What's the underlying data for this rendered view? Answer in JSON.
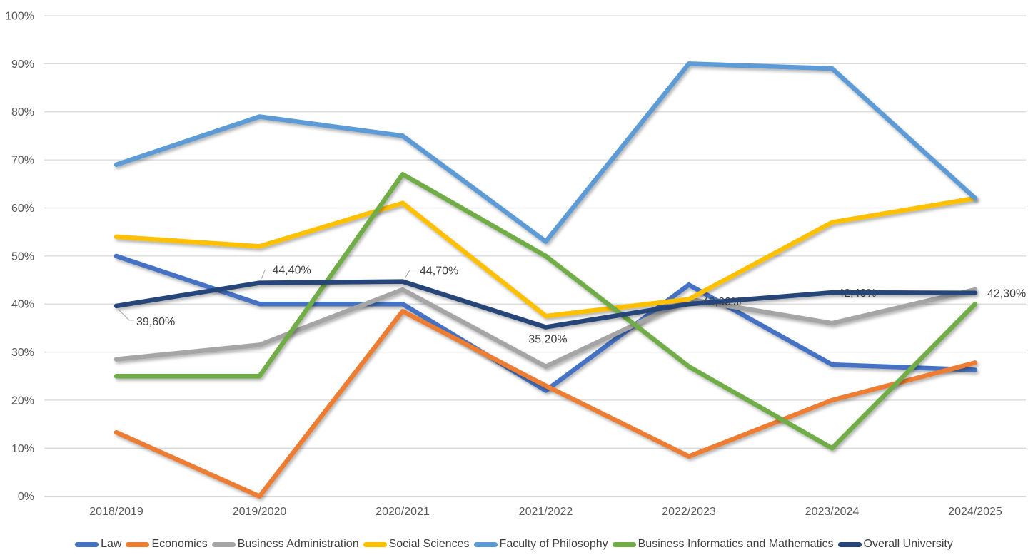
{
  "chart_data": {
    "type": "line",
    "title": "",
    "xlabel": "",
    "ylabel": "",
    "categories": [
      "2018/2019",
      "2019/2020",
      "2020/2021",
      "2021/2022",
      "2022/2023",
      "2023/2024",
      "2024/2025"
    ],
    "y_axis": {
      "min": 0,
      "max": 100,
      "tick_step": 10,
      "ticks": [
        "0%",
        "10%",
        "20%",
        "30%",
        "40%",
        "50%",
        "60%",
        "70%",
        "80%",
        "90%",
        "100%"
      ],
      "grid": "on"
    },
    "legend_position": "bottom",
    "series": [
      {
        "name": "Law",
        "color": "#4472C4",
        "values": [
          50,
          40,
          40,
          22,
          44,
          27.4,
          26.3
        ]
      },
      {
        "name": "Economics",
        "color": "#ED7D31",
        "values": [
          13.3,
          0,
          38.5,
          23,
          8.3,
          20,
          27.8
        ]
      },
      {
        "name": "Business Administration",
        "color": "#A5A5A5",
        "values": [
          28.5,
          31.5,
          43,
          27,
          41,
          36,
          43
        ]
      },
      {
        "name": "Social Sciences",
        "color": "#FFC000",
        "values": [
          54,
          52,
          61,
          37.5,
          41,
          57,
          62
        ]
      },
      {
        "name": "Faculty of Philosophy",
        "color": "#5B9BD5",
        "values": [
          69,
          79,
          75,
          53,
          90,
          89,
          62
        ]
      },
      {
        "name": "Business Informatics and Mathematics",
        "color": "#70AD47",
        "values": [
          25,
          25,
          67,
          50,
          27,
          10,
          40
        ]
      },
      {
        "name": "Overall University",
        "color": "#264478",
        "values": [
          39.6,
          44.4,
          44.7,
          35.2,
          40,
          42.4,
          42.3
        ],
        "data_labels": [
          "39,60%",
          "44,40%",
          "44,70%",
          "35,20%",
          "40,00%",
          "42,40%",
          "42,30%"
        ]
      }
    ],
    "labeled_series": "Overall University"
  }
}
